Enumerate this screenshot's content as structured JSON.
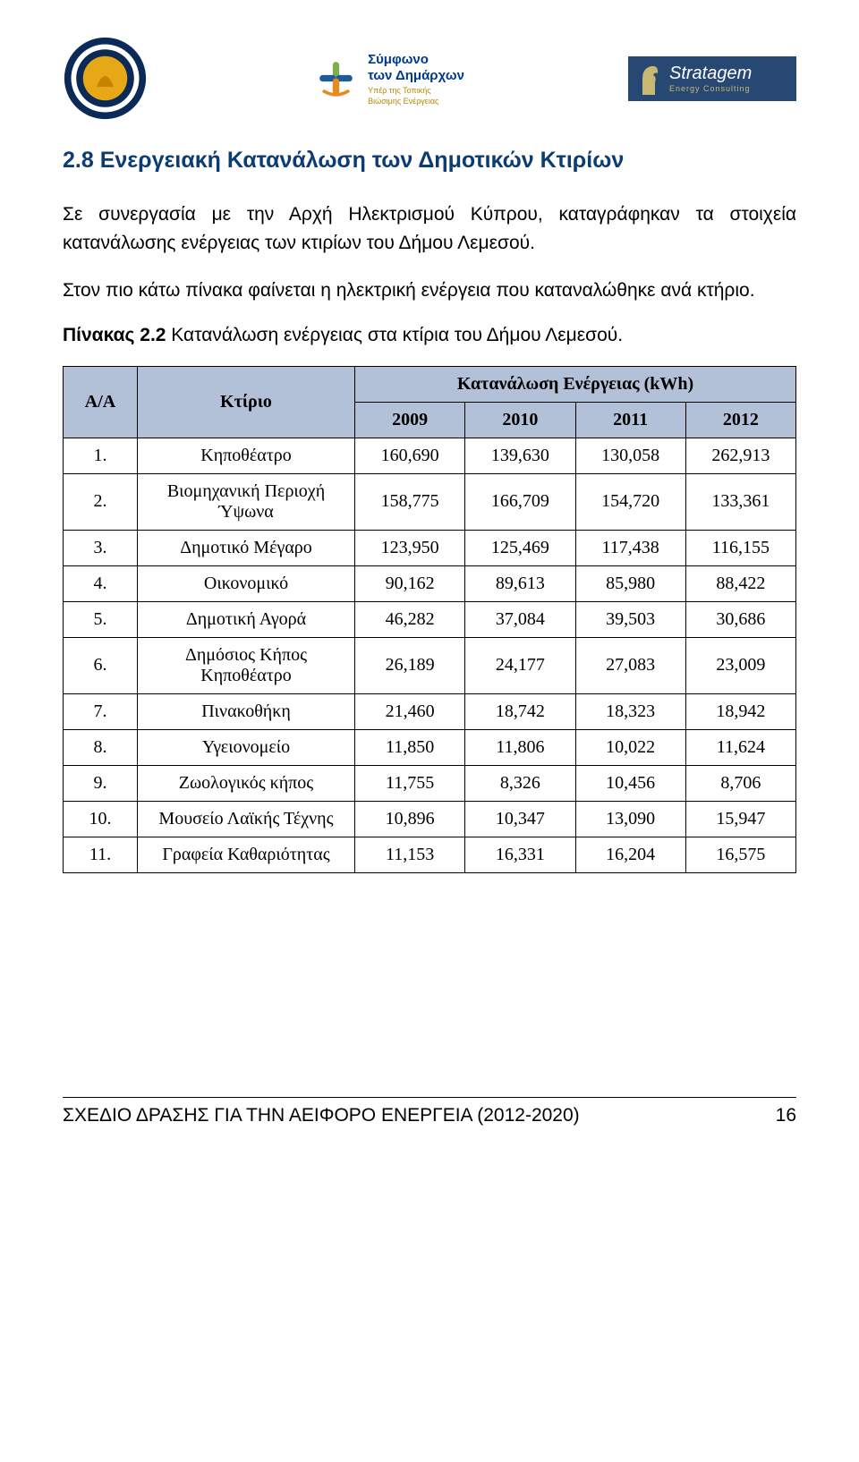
{
  "logos": {
    "left_circle_outer_color": "#0b2a57",
    "left_circle_inner_color": "#e6a817",
    "center_line1": "Σύμφωνο",
    "center_line2": "των Δημάρχων",
    "center_sub1": "Υπέρ της Τοπικής",
    "center_sub2": "Βιώσιμης Ενέργειας",
    "center_icon_green": "#7bb04a",
    "center_icon_blue": "#1f5a9a",
    "center_icon_orange": "#e78b1f",
    "right_bg": "#274873",
    "right_title": "Stratagem",
    "right_sub": "Energy Consulting"
  },
  "section": {
    "title": "2.8 Ενεργειακή Κατανάλωση των Δημοτικών Κτιρίων",
    "para1": "Σε συνεργασία με την Αρχή Ηλεκτρισμού Κύπρου, καταγράφηκαν τα στοιχεία  κατανάλωσης ενέργειας των κτιρίων του Δήμου Λεμεσού.",
    "para2": "Στον πιο κάτω πίνακα φαίνεται η ηλεκτρική ενέργεια που καταναλώθηκε ανά κτήριο.",
    "caption_bold": "Πίνακας 2.2",
    "caption_rest": "  Κατανάλωση ενέργειας στα κτίρια του Δήμου Λεμεσού."
  },
  "table": {
    "header_bg": "#b2c1d8",
    "border_color": "#000000",
    "col_aa": "Α/Α",
    "col_building": "Κτίριο",
    "col_group": "Κατανάλωση Ενέργειας (kWh)",
    "years": [
      "2009",
      "2010",
      "2011",
      "2012"
    ],
    "rows": [
      {
        "n": "1.",
        "name": "Κηποθέατρο",
        "v": [
          "160,690",
          "139,630",
          "130,058",
          "262,913"
        ]
      },
      {
        "n": "2.",
        "name": "Βιομηχανική Περιοχή Ύψωνα",
        "v": [
          "158,775",
          "166,709",
          "154,720",
          "133,361"
        ]
      },
      {
        "n": "3.",
        "name": "Δημοτικό Μέγαρο",
        "v": [
          "123,950",
          "125,469",
          "117,438",
          "116,155"
        ]
      },
      {
        "n": "4.",
        "name": "Οικονομικό",
        "v": [
          "90,162",
          "89,613",
          "85,980",
          "88,422"
        ]
      },
      {
        "n": "5.",
        "name": "Δημοτική Αγορά",
        "v": [
          "46,282",
          "37,084",
          "39,503",
          "30,686"
        ]
      },
      {
        "n": "6.",
        "name": "Δημόσιος Κήπος Κηποθέατρο",
        "v": [
          "26,189",
          "24,177",
          "27,083",
          "23,009"
        ]
      },
      {
        "n": "7.",
        "name": "Πινακοθήκη",
        "v": [
          "21,460",
          "18,742",
          "18,323",
          "18,942"
        ]
      },
      {
        "n": "8.",
        "name": "Υγειονομείο",
        "v": [
          "11,850",
          "11,806",
          "10,022",
          "11,624"
        ]
      },
      {
        "n": "9.",
        "name": "Ζωολογικός κήπος",
        "v": [
          "11,755",
          "8,326",
          "10,456",
          "8,706"
        ]
      },
      {
        "n": "10.",
        "name": "Μουσείο Λαϊκής Τέχνης",
        "v": [
          "10,896",
          "10,347",
          "13,090",
          "15,947"
        ]
      },
      {
        "n": "11.",
        "name": "Γραφεία Καθαριότητας",
        "v": [
          "11,153",
          "16,331",
          "16,204",
          "16,575"
        ]
      }
    ]
  },
  "footer": {
    "text": "ΣΧΕΔΙΟ ΔΡΑΣΗΣ ΓΙΑ ΤΗΝ ΑΕΙΦΟΡΟ ΕΝΕΡΓΕΙΑ (2012-2020)",
    "page": "16"
  }
}
